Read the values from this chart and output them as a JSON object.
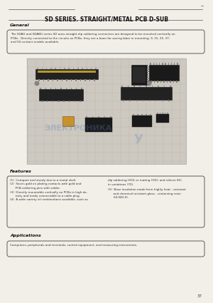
{
  "bg_color": "#f2efe9",
  "title": "SD SERIES. STRAIGHT/METAL PCB D-SUB",
  "title_fontsize": 5.5,
  "page_number": "37",
  "general_heading": "General",
  "general_text": "The SDAG and SDABU series SD auto-straight dip soldering connectors are designed to be mounted vertically on\nPCBs.  Directly connected to the circuits on PCBs, they are a boon for saving labor in mounting. 9, 15, 25, 37,\nand 50-contact models available.",
  "features_heading": "Features",
  "features_text_left": "(1)  Compact and sturdy due to a metal shell.\n(2)  Saves gold on plating contacts with gold and\n      PCB-soldering pins with solder.\n(3)  Directly mountable vertically on PCBs in high de-\n      nsity and easily connectable to a cable plug.\n(4)  A wide variety of combinations available, such as",
  "features_text_right_top": "dip soldering (HOL or mating (OD), and relieve IGC\nin variations (70).",
  "features_text_right_bottom": "(5)  Base insulation made from highly heat - resistant\n      and chemical resistant glass - containing resin\n      (UL94V-0).",
  "applications_heading": "Applications",
  "applications_text": "Computers, peripherals and terminals, control equipment, and measuring instruments.",
  "line_color": "#555555",
  "box_color": "#444444",
  "heading_color": "#111111",
  "text_color": "#333333",
  "text_fontsize": 3.0,
  "heading_fontsize": 4.5,
  "watermark_color_blue": "#5580bb",
  "watermark_color_gray": "#7799cc",
  "grid_bg": "#cdc8c0",
  "grid_line": "#b0aba3",
  "connector_dark": "#222222",
  "connector_pin": "#777777",
  "connector_orange": "#c8922a"
}
